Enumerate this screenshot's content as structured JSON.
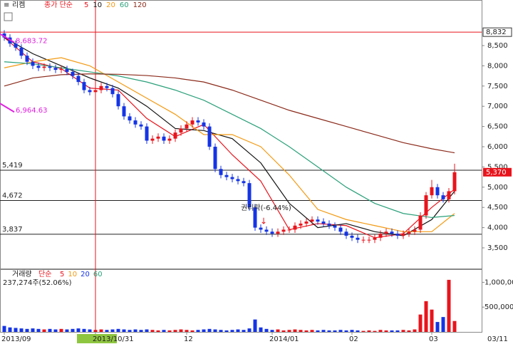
{
  "chart_data": [
    {
      "type": "candlestick",
      "title": "리켐",
      "subtitle": "종가 단순",
      "ma_labels": [
        "5",
        "10",
        "20",
        "60",
        "120"
      ],
      "up_color": "#e8141c",
      "down_color": "#1434e6",
      "open": [
        8800,
        8700,
        8550,
        8450,
        8250,
        8100,
        8000,
        7950,
        7980,
        7950,
        7900,
        7920,
        7850,
        7750,
        7600,
        7400,
        7350,
        7400,
        7500,
        7450,
        7300,
        7000,
        6750,
        6650,
        6550,
        6500,
        6150,
        6200,
        6250,
        6150,
        6200,
        6350,
        6450,
        6550,
        6650,
        6600,
        6500,
        6000,
        5450,
        5300,
        5250,
        5200,
        5150,
        5100,
        4500,
        4000,
        3950,
        3900,
        3850,
        3900,
        3950,
        3950,
        4050,
        4100,
        4150,
        4200,
        4150,
        4100,
        4050,
        4000,
        3900,
        3800,
        3750,
        3700,
        3700,
        3700,
        3750,
        3850,
        3900,
        3850,
        3800,
        3850,
        3900,
        3950,
        4300,
        4800,
        5000,
        4800,
        4700,
        4900
      ],
      "high": [
        8880,
        8780,
        8630,
        8530,
        8330,
        8180,
        8080,
        8060,
        8060,
        8030,
        8000,
        8000,
        7930,
        7830,
        7680,
        7480,
        7480,
        7580,
        7580,
        7530,
        7380,
        7080,
        6830,
        6730,
        6630,
        6580,
        6280,
        6330,
        6330,
        6280,
        6430,
        6530,
        6630,
        6730,
        6730,
        6680,
        6580,
        6080,
        5530,
        5380,
        5330,
        5280,
        5230,
        5180,
        4580,
        4080,
        4030,
        3980,
        3980,
        4030,
        4030,
        4130,
        4180,
        4230,
        4280,
        4280,
        4230,
        4180,
        4130,
        4080,
        3980,
        3880,
        3830,
        3780,
        3780,
        3830,
        3930,
        3980,
        3980,
        3930,
        3930,
        3980,
        4030,
        4380,
        4880,
        5180,
        5080,
        4880,
        4980,
        5580
      ],
      "low": [
        8620,
        8470,
        8370,
        8170,
        8020,
        7920,
        7870,
        7870,
        7870,
        7820,
        7820,
        7770,
        7670,
        7520,
        7320,
        7270,
        7270,
        7320,
        7370,
        7220,
        6920,
        6670,
        6570,
        6470,
        6420,
        6070,
        6070,
        6120,
        6070,
        6070,
        6120,
        6270,
        6370,
        6470,
        6520,
        6420,
        5920,
        5370,
        5220,
        5170,
        5120,
        5070,
        5020,
        4420,
        3920,
        3870,
        3820,
        3770,
        3770,
        3820,
        3870,
        3870,
        3970,
        4020,
        4070,
        4070,
        4020,
        3970,
        3920,
        3820,
        3720,
        3670,
        3620,
        3620,
        3620,
        3620,
        3670,
        3770,
        3770,
        3720,
        3720,
        3770,
        3820,
        3870,
        4220,
        4720,
        4720,
        4620,
        4620,
        4820
      ],
      "close": [
        8700,
        8550,
        8450,
        8250,
        8100,
        8000,
        7950,
        7980,
        7950,
        7900,
        7920,
        7850,
        7750,
        7600,
        7400,
        7350,
        7400,
        7500,
        7450,
        7300,
        7000,
        6750,
        6650,
        6550,
        6500,
        6150,
        6200,
        6250,
        6150,
        6200,
        6350,
        6450,
        6550,
        6650,
        6600,
        6500,
        6000,
        5450,
        5300,
        5250,
        5200,
        5150,
        5100,
        4500,
        4000,
        3950,
        3900,
        3850,
        3900,
        3950,
        3950,
        4050,
        4100,
        4150,
        4200,
        4150,
        4100,
        4050,
        4000,
        3900,
        3800,
        3750,
        3700,
        3700,
        3700,
        3750,
        3850,
        3900,
        3850,
        3800,
        3850,
        3900,
        3950,
        4300,
        4800,
        5000,
        4800,
        4700,
        4900,
        5370
      ],
      "series": [
        {
          "name": "5",
          "color": "#e8141c",
          "x": [
            0,
            5,
            10,
            15,
            20,
            25,
            30,
            35,
            40,
            45,
            50,
            55,
            60,
            65,
            70,
            75,
            79
          ],
          "values": [
            8700,
            8100,
            7930,
            7450,
            7400,
            6700,
            6250,
            6550,
            5800,
            5150,
            3950,
            4100,
            4050,
            3750,
            3850,
            4500,
            4950
          ]
        },
        {
          "name": "10",
          "color": "#111111",
          "x": [
            0,
            5,
            10,
            15,
            20,
            25,
            30,
            35,
            40,
            45,
            50,
            55,
            60,
            65,
            70,
            75,
            79
          ],
          "values": [
            8700,
            8300,
            8000,
            7700,
            7450,
            7000,
            6450,
            6400,
            6200,
            5600,
            4600,
            4000,
            4100,
            3900,
            3800,
            4200,
            4900
          ]
        },
        {
          "name": "20",
          "color": "#f39a12",
          "x": [
            0,
            5,
            10,
            15,
            20,
            25,
            30,
            35,
            40,
            45,
            50,
            55,
            60,
            65,
            70,
            75,
            79
          ],
          "values": [
            7950,
            8100,
            8200,
            8000,
            7600,
            7200,
            6800,
            6300,
            6300,
            6000,
            5300,
            4450,
            4200,
            4050,
            3900,
            3900,
            4350
          ]
        },
        {
          "name": "60",
          "color": "#2aa07a",
          "x": [
            0,
            5,
            10,
            15,
            20,
            25,
            30,
            35,
            40,
            45,
            50,
            55,
            60,
            65,
            70,
            75,
            79
          ],
          "values": [
            8100,
            8050,
            7950,
            7850,
            7750,
            7600,
            7400,
            7150,
            6800,
            6450,
            6000,
            5500,
            5000,
            4600,
            4350,
            4250,
            4300
          ]
        },
        {
          "name": "120",
          "color": "#8b2a1a",
          "x": [
            0,
            5,
            10,
            15,
            20,
            25,
            30,
            35,
            40,
            45,
            50,
            55,
            60,
            65,
            70,
            75,
            79
          ],
          "values": [
            7500,
            7700,
            7780,
            7800,
            7790,
            7760,
            7700,
            7600,
            7400,
            7150,
            6900,
            6700,
            6500,
            6300,
            6100,
            5950,
            5850
          ]
        }
      ],
      "ylim": [
        2972,
        9310
      ],
      "yticks": [
        {
          "value": 8500,
          "label": "8,500"
        },
        {
          "value": 8000,
          "label": "8,000"
        },
        {
          "value": 7500,
          "label": "7,500"
        },
        {
          "value": 7000,
          "label": "7,000"
        },
        {
          "value": 6500,
          "label": "6,500"
        },
        {
          "value": 6000,
          "label": "6,000"
        },
        {
          "value": 5500,
          "label": "5,500"
        },
        {
          "value": 5000,
          "label": "5,000"
        },
        {
          "value": 4500,
          "label": "4,500"
        },
        {
          "value": 4000,
          "label": "4,000"
        },
        {
          "value": 3500,
          "label": "3,500"
        }
      ],
      "levels": [
        {
          "value": 5419,
          "label": "5,419"
        },
        {
          "value": 4672,
          "label": "4,672"
        },
        {
          "value": 3837,
          "label": "3,837"
        }
      ],
      "crosshair_y": {
        "value": 8832,
        "label": "8,832"
      },
      "crosshair_x": 16,
      "last": {
        "value": 5370,
        "label": "5,370"
      },
      "annotations": [
        {
          "text": "8,683.72",
          "value": 8683.72
        },
        {
          "text": "6,964.63",
          "value": 6964.63
        }
      ],
      "event": {
        "text": "권리락(-6.44%)",
        "x": 46
      }
    },
    {
      "type": "bar",
      "title": "거래량",
      "subtitle": "단순",
      "ma_labels": [
        "5",
        "10",
        "20",
        "60"
      ],
      "info": "237,274주(52.06%)",
      "values": [
        120000,
        90000,
        80000,
        70000,
        60000,
        70000,
        60000,
        50000,
        60000,
        50000,
        60000,
        50000,
        60000,
        70000,
        60000,
        50000,
        40000,
        50000,
        40000,
        50000,
        60000,
        50000,
        40000,
        50000,
        40000,
        50000,
        40000,
        30000,
        40000,
        30000,
        40000,
        50000,
        40000,
        30000,
        40000,
        50000,
        60000,
        50000,
        40000,
        30000,
        40000,
        50000,
        40000,
        70000,
        250000,
        90000,
        60000,
        40000,
        50000,
        30000,
        40000,
        50000,
        40000,
        30000,
        40000,
        30000,
        40000,
        30000,
        30000,
        40000,
        30000,
        40000,
        30000,
        20000,
        30000,
        20000,
        40000,
        30000,
        30000,
        30000,
        40000,
        30000,
        50000,
        350000,
        620000,
        450000,
        200000,
        300000,
        1050000,
        220000
      ],
      "ylim": [
        0,
        1063000
      ],
      "yticks": [
        {
          "value": 500000,
          "label": "500,000"
        },
        {
          "value": 1000000,
          "label": "1,000,000"
        }
      ],
      "xticks": [
        {
          "value": 0,
          "label": "2013/09"
        },
        {
          "value": 16,
          "label": "2013/10/31"
        },
        {
          "value": 32,
          "label": "12"
        },
        {
          "value": 47,
          "label": "2014/01"
        },
        {
          "value": 61,
          "label": "02"
        },
        {
          "value": 75,
          "label": "03"
        }
      ],
      "date_label": "03/11"
    }
  ]
}
